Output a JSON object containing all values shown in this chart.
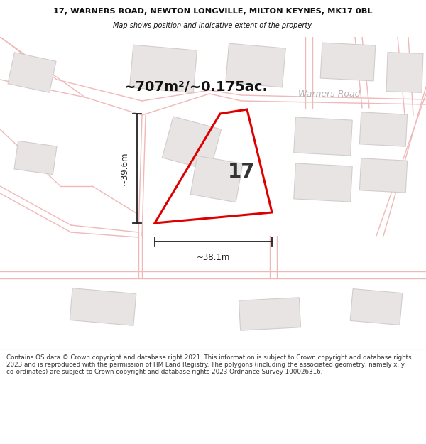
{
  "title_line1": "17, WARNERS ROAD, NEWTON LONGVILLE, MILTON KEYNES, MK17 0BL",
  "title_line2": "Map shows position and indicative extent of the property.",
  "area_text": "~707m²/~0.175ac.",
  "road_label": "Warners Road",
  "plot_number": "17",
  "width_label": "~38.1m",
  "height_label": "~39.6m",
  "footer_text": "Contains OS data © Crown copyright and database right 2021. This information is subject to Crown copyright and database rights 2023 and is reproduced with the permission of HM Land Registry. The polygons (including the associated geometry, namely x, y co-ordinates) are subject to Crown copyright and database rights 2023 Ordnance Survey 100026316.",
  "bg_color": "#f5f3f2",
  "map_bg": "#f7f5f4",
  "plot_fill": "none",
  "plot_edge_color": "#dd0000",
  "road_line_color": "#f0b8b8",
  "building_fill": "#e8e4e4",
  "building_edge": "#d4cccc",
  "footer_bg": "#ffffff",
  "title_bg": "#ffffff",
  "dim_color": "#222222",
  "text_dark": "#111111",
  "road_text_color": "#b8b0b0"
}
